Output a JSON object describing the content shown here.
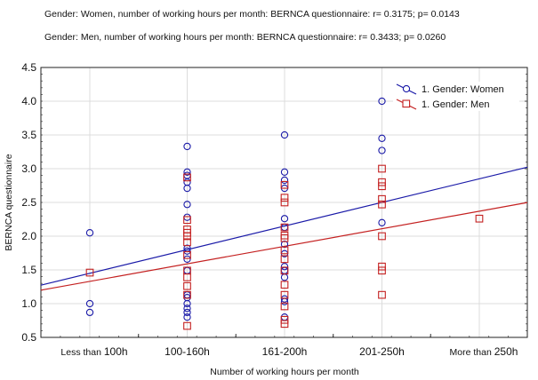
{
  "annotations": [
    "Gender: Women, number of working hours per month: BERNCA questionnaire: r= 0.3175; p= 0.0143",
    "Gender: Men, number of working hours per month: BERNCA questionnaire: r= 0.3433; p= 0.0260"
  ],
  "chart_data": {
    "type": "scatter",
    "title": "",
    "xlabel": "Number of working hours per month",
    "ylabel": "BERNCA questionnaire",
    "ylim": [
      0.5,
      4.5
    ],
    "yticks": [
      "0.5",
      "1.0",
      "1.5",
      "2.0",
      "2.5",
      "3.0",
      "3.5",
      "4.0",
      "4.5"
    ],
    "ytick_values": [
      0.5,
      1.0,
      1.5,
      2.0,
      2.5,
      3.0,
      3.5,
      4.0,
      4.5
    ],
    "categories": [
      "Less than 100h",
      "100-160h",
      "161-200h",
      "201-250h",
      "More than 250h"
    ],
    "xtick_labels": [
      {
        "prefix": "Less than",
        "main": "100h"
      },
      {
        "prefix": "",
        "main": "100-160h"
      },
      {
        "prefix": "",
        "main": "161-200h"
      },
      {
        "prefix": "",
        "main": "201-250h"
      },
      {
        "prefix": "More than",
        "main": "250h"
      }
    ],
    "grid": true,
    "legend_position": "top-right",
    "series": [
      {
        "name": "1. Gender: Women",
        "marker": "circle",
        "color": "#1a1aa8",
        "points": [
          [
            0,
            2.05
          ],
          [
            0,
            1.0
          ],
          [
            0,
            0.87
          ],
          [
            1,
            3.33
          ],
          [
            1,
            2.95
          ],
          [
            1,
            2.9
          ],
          [
            1,
            2.8
          ],
          [
            1,
            2.71
          ],
          [
            1,
            2.47
          ],
          [
            1,
            2.28
          ],
          [
            1,
            1.82
          ],
          [
            1,
            1.78
          ],
          [
            1,
            1.66
          ],
          [
            1,
            1.49
          ],
          [
            1,
            1.13
          ],
          [
            1,
            1.09
          ],
          [
            1,
            1.0
          ],
          [
            1,
            0.93
          ],
          [
            1,
            0.87
          ],
          [
            1,
            0.8
          ],
          [
            2,
            3.5
          ],
          [
            2,
            2.95
          ],
          [
            2,
            2.83
          ],
          [
            2,
            2.71
          ],
          [
            2,
            2.26
          ],
          [
            2,
            2.13
          ],
          [
            2,
            1.88
          ],
          [
            2,
            1.74
          ],
          [
            2,
            1.55
          ],
          [
            2,
            1.49
          ],
          [
            2,
            1.39
          ],
          [
            2,
            1.07
          ],
          [
            2,
            1.03
          ],
          [
            2,
            0.8
          ],
          [
            3,
            4.0
          ],
          [
            3,
            3.45
          ],
          [
            3,
            3.27
          ],
          [
            3,
            2.2
          ]
        ],
        "regression": {
          "intercept_at_first_category": 1.45,
          "slope_per_category": 0.35
        }
      },
      {
        "name": "1. Gender: Men",
        "marker": "square",
        "color": "#c42020",
        "points": [
          [
            0,
            1.46
          ],
          [
            1,
            2.87
          ],
          [
            1,
            2.24
          ],
          [
            1,
            2.1
          ],
          [
            1,
            2.05
          ],
          [
            1,
            2.0
          ],
          [
            1,
            1.91
          ],
          [
            1,
            1.72
          ],
          [
            1,
            1.49
          ],
          [
            1,
            1.39
          ],
          [
            1,
            1.26
          ],
          [
            1,
            1.13
          ],
          [
            1,
            0.67
          ],
          [
            2,
            2.76
          ],
          [
            2,
            2.57
          ],
          [
            2,
            2.5
          ],
          [
            2,
            2.13
          ],
          [
            2,
            2.01
          ],
          [
            2,
            1.97
          ],
          [
            2,
            1.79
          ],
          [
            2,
            1.66
          ],
          [
            2,
            1.49
          ],
          [
            2,
            1.28
          ],
          [
            2,
            1.13
          ],
          [
            2,
            0.96
          ],
          [
            2,
            0.76
          ],
          [
            2,
            0.7
          ],
          [
            3,
            3.0
          ],
          [
            3,
            2.8
          ],
          [
            3,
            2.74
          ],
          [
            3,
            2.55
          ],
          [
            3,
            2.47
          ],
          [
            3,
            2.0
          ],
          [
            3,
            1.55
          ],
          [
            3,
            1.49
          ],
          [
            3,
            1.13
          ],
          [
            4,
            2.26
          ]
        ],
        "regression": {
          "intercept_at_first_category": 1.33,
          "slope_per_category": 0.26
        }
      }
    ]
  }
}
